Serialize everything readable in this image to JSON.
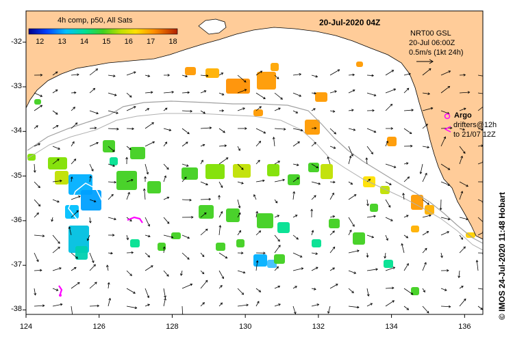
{
  "title": {
    "product": "4h comp, p50, All Sats",
    "datetime": "20-Jul-2020 04Z"
  },
  "currents": {
    "label": "NRT00 GSL",
    "time": "20-Jul 06:00Z",
    "scale": "0.5m/s (1kt 24h)"
  },
  "argo": {
    "label": "Argo",
    "drifters": "drifters@12h",
    "drifters_to": "to 21/07 12Z"
  },
  "credit": "© IMOS 24-Jul-2020 11:48 Hobart",
  "colorbar": {
    "ticks": [
      "12",
      "13",
      "14",
      "15",
      "16",
      "17",
      "18"
    ],
    "min": 11.5,
    "max": 18.2
  },
  "axes": {
    "lon": [
      "124",
      "126",
      "128",
      "130",
      "132",
      "134",
      "136"
    ],
    "lat": [
      "-32",
      "-33",
      "-34",
      "-35",
      "-36",
      "-37",
      "-38"
    ],
    "lon_range": [
      124,
      136.5
    ],
    "lat_range": [
      -38.1,
      -31.3
    ]
  },
  "colors": {
    "land": "#FFCC99",
    "ocean": "#FFFFFF",
    "argo": "#FF00FF",
    "bathy": "#A0A0A0"
  }
}
